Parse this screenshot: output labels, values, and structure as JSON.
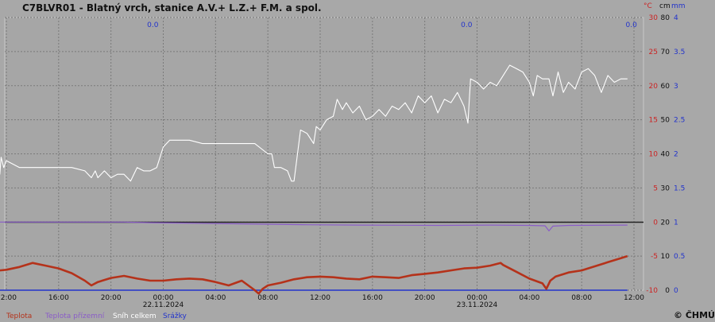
{
  "chart_data": {
    "type": "line",
    "title": "C7BLVR01 - Blatný vrch, stanice A.V.+ L.Z.+ F.M. a spol.",
    "axis_units": {
      "temp": "°C",
      "snow": "cm",
      "prec": "mm"
    },
    "left_axis": {
      "min": -10,
      "max": 30,
      "ticks": [
        "30",
        "25",
        "20",
        "15",
        "10",
        "5",
        "0",
        "-5",
        "-10"
      ]
    },
    "snow_axis": {
      "min": 0,
      "max": 80,
      "ticks": [
        "80",
        "70",
        "60",
        "50",
        "40",
        "30",
        "20",
        "10",
        "0"
      ]
    },
    "prec_axis": {
      "min": 0,
      "max": 4,
      "ticks": [
        "4",
        "3.5",
        "3",
        "2.5",
        "2",
        "1.5",
        "1",
        "0.5",
        "0"
      ]
    },
    "x_range_hours": [
      0,
      48
    ],
    "x_ticks": [
      {
        "h": 1,
        "label": "12:00",
        "date": ""
      },
      {
        "h": 5,
        "label": "16:00",
        "date": ""
      },
      {
        "h": 9,
        "label": "20:00",
        "date": ""
      },
      {
        "h": 13,
        "label": "00:00",
        "date": "22.11.2024"
      },
      {
        "h": 17,
        "label": "04:00",
        "date": ""
      },
      {
        "h": 21,
        "label": "08:00",
        "date": ""
      },
      {
        "h": 25,
        "label": "12:00",
        "date": ""
      },
      {
        "h": 29,
        "label": "16:00",
        "date": ""
      },
      {
        "h": 33,
        "label": "20:00",
        "date": ""
      },
      {
        "h": 37,
        "label": "00:00",
        "date": "23.11.2024"
      },
      {
        "h": 41,
        "label": "04:00",
        "date": ""
      },
      {
        "h": 45,
        "label": "08:00",
        "date": ""
      },
      {
        "h": 49,
        "label": "12:00",
        "date": ""
      }
    ],
    "precip_labels": [
      {
        "h": 12.2,
        "text": "0.0"
      },
      {
        "h": 36.2,
        "text": "0.0"
      },
      {
        "h": 48.8,
        "text": "0.0"
      }
    ],
    "series": [
      {
        "name": "Teplota",
        "axis": "temp",
        "color": "#b5321a",
        "points": [
          [
            0,
            -7.2
          ],
          [
            1,
            -7.0
          ],
          [
            2,
            -6.6
          ],
          [
            3,
            -6.0
          ],
          [
            4,
            -6.4
          ],
          [
            5,
            -6.8
          ],
          [
            6,
            -7.5
          ],
          [
            7,
            -8.6
          ],
          [
            7.5,
            -9.3
          ],
          [
            8,
            -8.8
          ],
          [
            9,
            -8.2
          ],
          [
            10,
            -7.9
          ],
          [
            11,
            -8.3
          ],
          [
            12,
            -8.6
          ],
          [
            13,
            -8.6
          ],
          [
            14,
            -8.4
          ],
          [
            15,
            -8.3
          ],
          [
            16,
            -8.4
          ],
          [
            17,
            -8.8
          ],
          [
            18,
            -9.3
          ],
          [
            19,
            -8.6
          ],
          [
            20,
            -10.0
          ],
          [
            20.3,
            -10.5
          ],
          [
            20.6,
            -9.8
          ],
          [
            21,
            -9.3
          ],
          [
            22,
            -8.9
          ],
          [
            23,
            -8.4
          ],
          [
            24,
            -8.1
          ],
          [
            25,
            -8.0
          ],
          [
            26,
            -8.1
          ],
          [
            27,
            -8.3
          ],
          [
            28,
            -8.4
          ],
          [
            29,
            -8.0
          ],
          [
            30,
            -8.1
          ],
          [
            31,
            -8.2
          ],
          [
            32,
            -7.8
          ],
          [
            33,
            -7.6
          ],
          [
            34,
            -7.4
          ],
          [
            35,
            -7.1
          ],
          [
            36,
            -6.8
          ],
          [
            37,
            -6.7
          ],
          [
            38,
            -6.4
          ],
          [
            38.8,
            -6.0
          ],
          [
            39,
            -6.3
          ],
          [
            40,
            -7.3
          ],
          [
            41,
            -8.3
          ],
          [
            42,
            -9.0
          ],
          [
            42.3,
            -9.8
          ],
          [
            42.6,
            -8.6
          ],
          [
            43,
            -8.0
          ],
          [
            44,
            -7.4
          ],
          [
            45,
            -7.1
          ],
          [
            46,
            -6.5
          ],
          [
            47,
            -5.9
          ],
          [
            48,
            -5.3
          ],
          [
            48.5,
            -5.0
          ]
        ]
      },
      {
        "name": "Teplota přízemní",
        "axis": "temp",
        "color": "#8a5cc8",
        "points": [
          [
            0,
            0.0
          ],
          [
            10,
            0.0
          ],
          [
            12,
            -0.1
          ],
          [
            14,
            -0.15
          ],
          [
            18,
            -0.25
          ],
          [
            24,
            -0.4
          ],
          [
            28,
            -0.45
          ],
          [
            34,
            -0.5
          ],
          [
            38,
            -0.45
          ],
          [
            41,
            -0.5
          ],
          [
            42.2,
            -0.55
          ],
          [
            42.5,
            -1.3
          ],
          [
            42.8,
            -0.6
          ],
          [
            44,
            -0.5
          ],
          [
            48.5,
            -0.45
          ]
        ]
      },
      {
        "name": "Sníh celkem",
        "axis": "snow",
        "color": "#ffffff",
        "points": [
          [
            0,
            41
          ],
          [
            0.3,
            40
          ],
          [
            0.5,
            34
          ],
          [
            0.6,
            39
          ],
          [
            0.8,
            36
          ],
          [
            1.0,
            38
          ],
          [
            1.5,
            37
          ],
          [
            2,
            36
          ],
          [
            3,
            36
          ],
          [
            4,
            36
          ],
          [
            5,
            36
          ],
          [
            6,
            36
          ],
          [
            7,
            35
          ],
          [
            7.5,
            33
          ],
          [
            7.8,
            35
          ],
          [
            8,
            33
          ],
          [
            8.5,
            35
          ],
          [
            9,
            33
          ],
          [
            9.5,
            34
          ],
          [
            10,
            34
          ],
          [
            10.5,
            32
          ],
          [
            11,
            36
          ],
          [
            11.5,
            35
          ],
          [
            12,
            35
          ],
          [
            12.5,
            36
          ],
          [
            13,
            42
          ],
          [
            13.5,
            44
          ],
          [
            14,
            44
          ],
          [
            15,
            44
          ],
          [
            16,
            43
          ],
          [
            17,
            43
          ],
          [
            18,
            43
          ],
          [
            19,
            43
          ],
          [
            20,
            43
          ],
          [
            21,
            40
          ],
          [
            21.3,
            40
          ],
          [
            21.5,
            36
          ],
          [
            22,
            36
          ],
          [
            22.5,
            35
          ],
          [
            22.8,
            32
          ],
          [
            23,
            32
          ],
          [
            23.5,
            47
          ],
          [
            24,
            46
          ],
          [
            24.5,
            43
          ],
          [
            24.7,
            48
          ],
          [
            25,
            47
          ],
          [
            25.5,
            50
          ],
          [
            26,
            51
          ],
          [
            26.3,
            56
          ],
          [
            26.7,
            53
          ],
          [
            27,
            55
          ],
          [
            27.5,
            52
          ],
          [
            28,
            54
          ],
          [
            28.5,
            50
          ],
          [
            29,
            51
          ],
          [
            29.5,
            53
          ],
          [
            30,
            51
          ],
          [
            30.5,
            54
          ],
          [
            31,
            53
          ],
          [
            31.5,
            55
          ],
          [
            32,
            52
          ],
          [
            32.5,
            57
          ],
          [
            33,
            55
          ],
          [
            33.5,
            57
          ],
          [
            34,
            52
          ],
          [
            34.5,
            56
          ],
          [
            35,
            55
          ],
          [
            35.5,
            58
          ],
          [
            36,
            54
          ],
          [
            36.3,
            49
          ],
          [
            36.5,
            62
          ],
          [
            37,
            61
          ],
          [
            37.5,
            59
          ],
          [
            38,
            61
          ],
          [
            38.5,
            60
          ],
          [
            39,
            63
          ],
          [
            39.5,
            66
          ],
          [
            40,
            65
          ],
          [
            40.5,
            64
          ],
          [
            41,
            61
          ],
          [
            41.3,
            57
          ],
          [
            41.6,
            63
          ],
          [
            42,
            62
          ],
          [
            42.5,
            62
          ],
          [
            42.8,
            57
          ],
          [
            43.2,
            64
          ],
          [
            43.6,
            58
          ],
          [
            44,
            61
          ],
          [
            44.5,
            59
          ],
          [
            45,
            64
          ],
          [
            45.5,
            65
          ],
          [
            46,
            63
          ],
          [
            46.5,
            58
          ],
          [
            47,
            63
          ],
          [
            47.5,
            61
          ],
          [
            48,
            62
          ],
          [
            48.5,
            62
          ]
        ]
      },
      {
        "name": "Srážky",
        "axis": "prec",
        "color": "#2233cc",
        "points": [
          [
            0,
            0.0
          ],
          [
            48.5,
            0.0
          ]
        ]
      }
    ]
  },
  "footer": {
    "copyright": "© ČHMÚ"
  }
}
